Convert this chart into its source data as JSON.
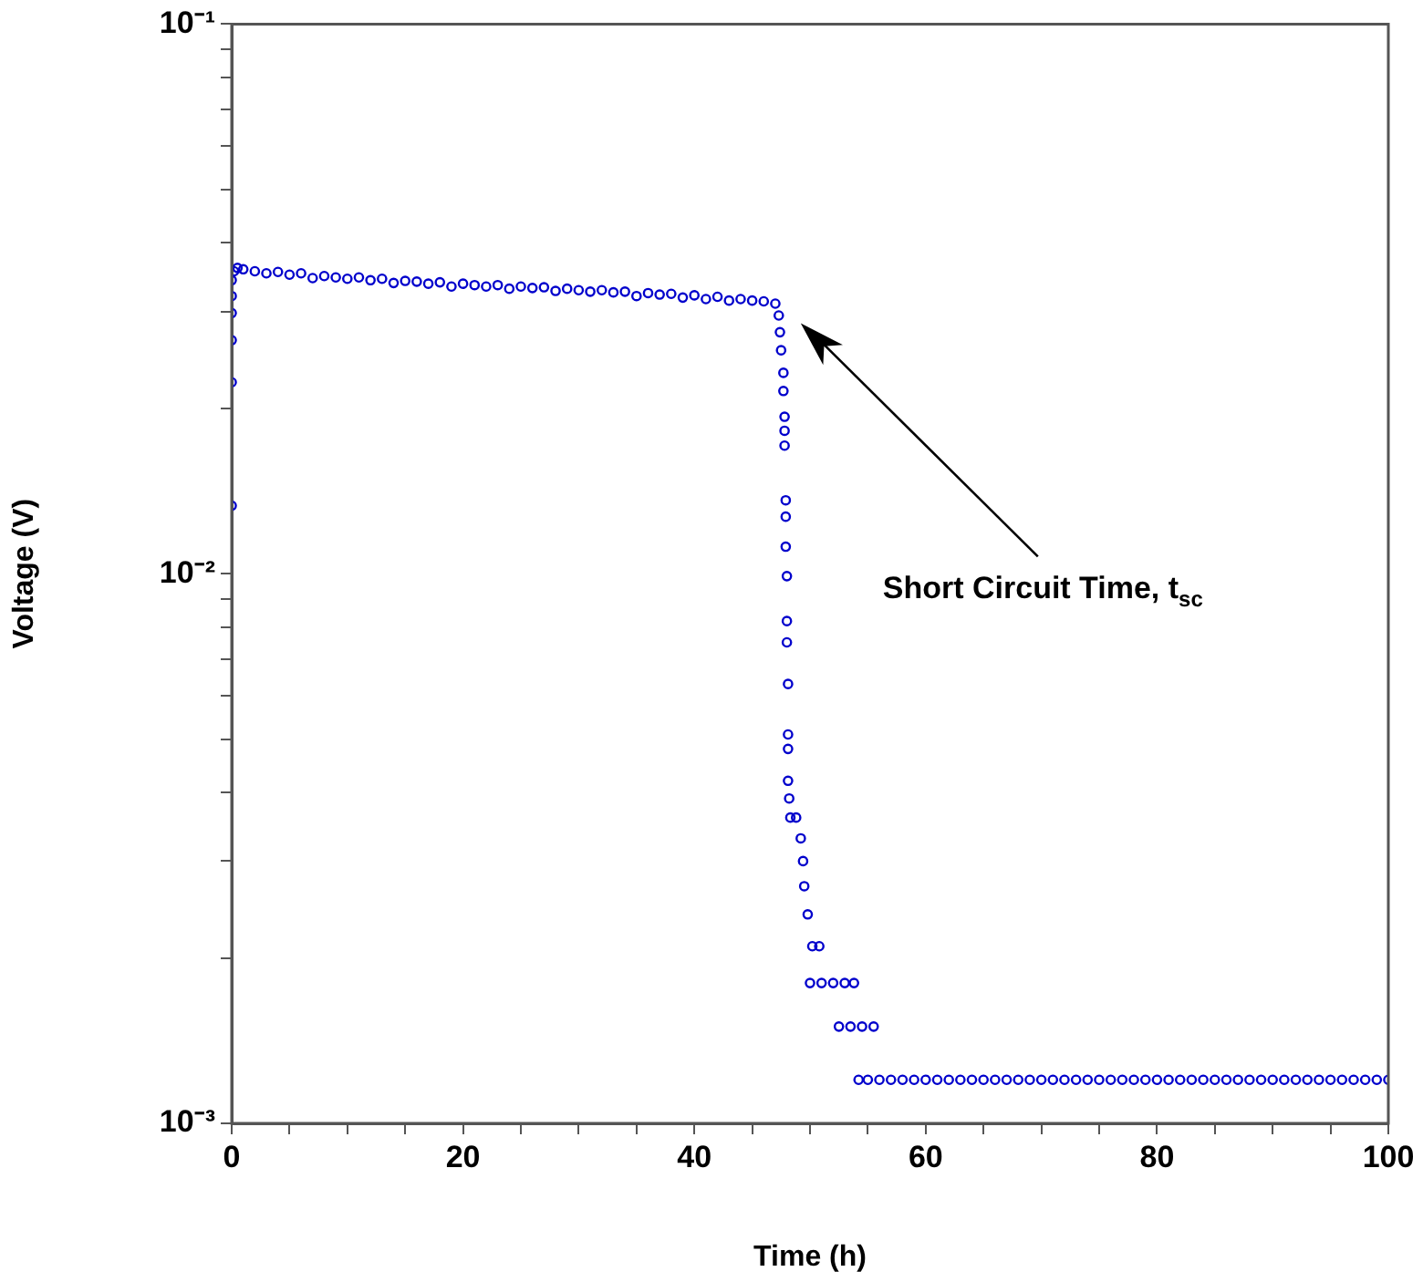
{
  "chart_data": {
    "type": "scatter",
    "xlabel": "Time (h)",
    "ylabel": "Voltage (V)",
    "log": "y",
    "marker": "circle",
    "grid": false,
    "legend": false,
    "xlim": [
      0,
      100
    ],
    "xticks": [
      0,
      {
        "value": 5,
        "label": null
      },
      {
        "value": 10,
        "label": null
      },
      {
        "value": 15,
        "label": null
      },
      20,
      {
        "value": 25,
        "label": null
      },
      {
        "value": 30,
        "label": null
      },
      {
        "value": 35,
        "label": null
      },
      40,
      {
        "value": 45,
        "label": null
      },
      {
        "value": 50,
        "label": null
      },
      {
        "value": 55,
        "label": null
      },
      60,
      {
        "value": 65,
        "label": null
      },
      {
        "value": 70,
        "label": null
      },
      {
        "value": 75,
        "label": null
      },
      80,
      {
        "value": 85,
        "label": null
      },
      {
        "value": 90,
        "label": null
      },
      {
        "value": 95,
        "label": null
      },
      100
    ],
    "ylim": [
      0.001,
      0.1
    ],
    "yticks": [
      {
        "value": 0.001,
        "label": "10⁻³"
      },
      {
        "value": 0.002,
        "label": null
      },
      {
        "value": 0.003,
        "label": null
      },
      {
        "value": 0.004,
        "label": null
      },
      {
        "value": 0.005,
        "label": null
      },
      {
        "value": 0.006,
        "label": null
      },
      {
        "value": 0.007,
        "label": null
      },
      {
        "value": 0.008,
        "label": null
      },
      {
        "value": 0.009,
        "label": null
      },
      {
        "value": 0.01,
        "label": "10⁻²"
      },
      {
        "value": 0.02,
        "label": null
      },
      {
        "value": 0.03,
        "label": null
      },
      {
        "value": 0.04,
        "label": null
      },
      {
        "value": 0.05,
        "label": null
      },
      {
        "value": 0.06,
        "label": null
      },
      {
        "value": 0.07,
        "label": null
      },
      {
        "value": 0.08,
        "label": null
      },
      {
        "value": 0.09,
        "label": null
      },
      {
        "value": 0.1,
        "label": "10⁻¹"
      }
    ],
    "annotations": [
      "Short Circuit Time, t$_{sc}$"
    ],
    "series": [
      {
        "color": "#0000cc",
        "x": [
          0,
          0,
          0,
          0,
          0,
          0,
          0.2,
          0.5,
          1,
          2,
          3,
          4,
          5,
          6,
          7,
          8,
          9,
          10,
          11,
          12,
          13,
          14,
          15,
          16,
          17,
          18,
          19,
          20,
          21,
          22,
          23,
          24,
          25,
          26,
          27,
          28,
          29,
          30,
          31,
          32,
          33,
          34,
          35,
          36,
          37,
          38,
          39,
          40,
          41,
          42,
          43,
          44,
          45,
          46,
          47,
          47.3,
          47.4,
          47.5,
          47.7,
          47.7,
          47.8,
          47.8,
          47.8,
          47.9,
          47.9,
          47.9,
          48.0,
          48.0,
          48.0,
          48.1,
          48.1,
          48.1,
          48.1,
          48.2,
          48.3,
          48.8,
          49.2,
          49.4,
          49.5,
          49.8,
          50.2,
          50.8,
          50,
          51,
          52,
          53,
          53.8,
          52.5,
          53.5,
          54.5,
          55.5,
          54.2,
          55,
          56,
          57,
          58,
          59,
          60,
          61,
          62,
          63,
          64,
          65,
          66,
          67,
          68,
          69,
          70,
          71,
          72,
          73,
          74,
          75,
          76,
          77,
          78,
          79,
          80,
          81,
          82,
          83,
          84,
          85,
          86,
          87,
          88,
          89,
          90,
          91,
          92,
          93,
          94,
          95,
          96,
          97,
          98,
          99,
          100
        ],
        "values": [
          0.0133,
          0.0223,
          0.0266,
          0.0298,
          0.032,
          0.0342,
          0.0355,
          0.036,
          0.0358,
          0.0355,
          0.0352,
          0.0354,
          0.035,
          0.0352,
          0.0345,
          0.0348,
          0.0346,
          0.0344,
          0.0346,
          0.0342,
          0.0344,
          0.0338,
          0.0341,
          0.034,
          0.0337,
          0.0339,
          0.0333,
          0.0337,
          0.0335,
          0.0333,
          0.0335,
          0.033,
          0.0333,
          0.0331,
          0.0332,
          0.0327,
          0.033,
          0.0328,
          0.0326,
          0.0328,
          0.0325,
          0.0326,
          0.032,
          0.0324,
          0.0322,
          0.0323,
          0.0318,
          0.0321,
          0.0316,
          0.0319,
          0.0314,
          0.0316,
          0.0314,
          0.0313,
          0.031,
          0.0295,
          0.0275,
          0.0255,
          0.0232,
          0.0215,
          0.0193,
          0.0182,
          0.0171,
          0.0136,
          0.0127,
          0.0112,
          0.0099,
          0.0082,
          0.0075,
          0.0063,
          0.0051,
          0.0048,
          0.0042,
          0.0039,
          0.0036,
          0.0036,
          0.0033,
          0.003,
          0.0027,
          0.0024,
          0.0021,
          0.0021,
          0.0018,
          0.0018,
          0.0018,
          0.0018,
          0.0018,
          0.0015,
          0.0015,
          0.0015,
          0.0015,
          0.0012,
          0.0012,
          0.0012,
          0.0012,
          0.0012,
          0.0012,
          0.0012,
          0.0012,
          0.0012,
          0.0012,
          0.0012,
          0.0012,
          0.0012,
          0.0012,
          0.0012,
          0.0012,
          0.0012,
          0.0012,
          0.0012,
          0.0012,
          0.0012,
          0.0012,
          0.0012,
          0.0012,
          0.0012,
          0.0012,
          0.0012,
          0.0012,
          0.0012,
          0.0012,
          0.0012,
          0.0012,
          0.0012,
          0.0012,
          0.0012,
          0.0012,
          0.0012,
          0.0012,
          0.0012,
          0.0012,
          0.0012,
          0.0012,
          0.0012,
          0.0012,
          0.0012,
          0.0012,
          0.0012
        ]
      }
    ]
  }
}
